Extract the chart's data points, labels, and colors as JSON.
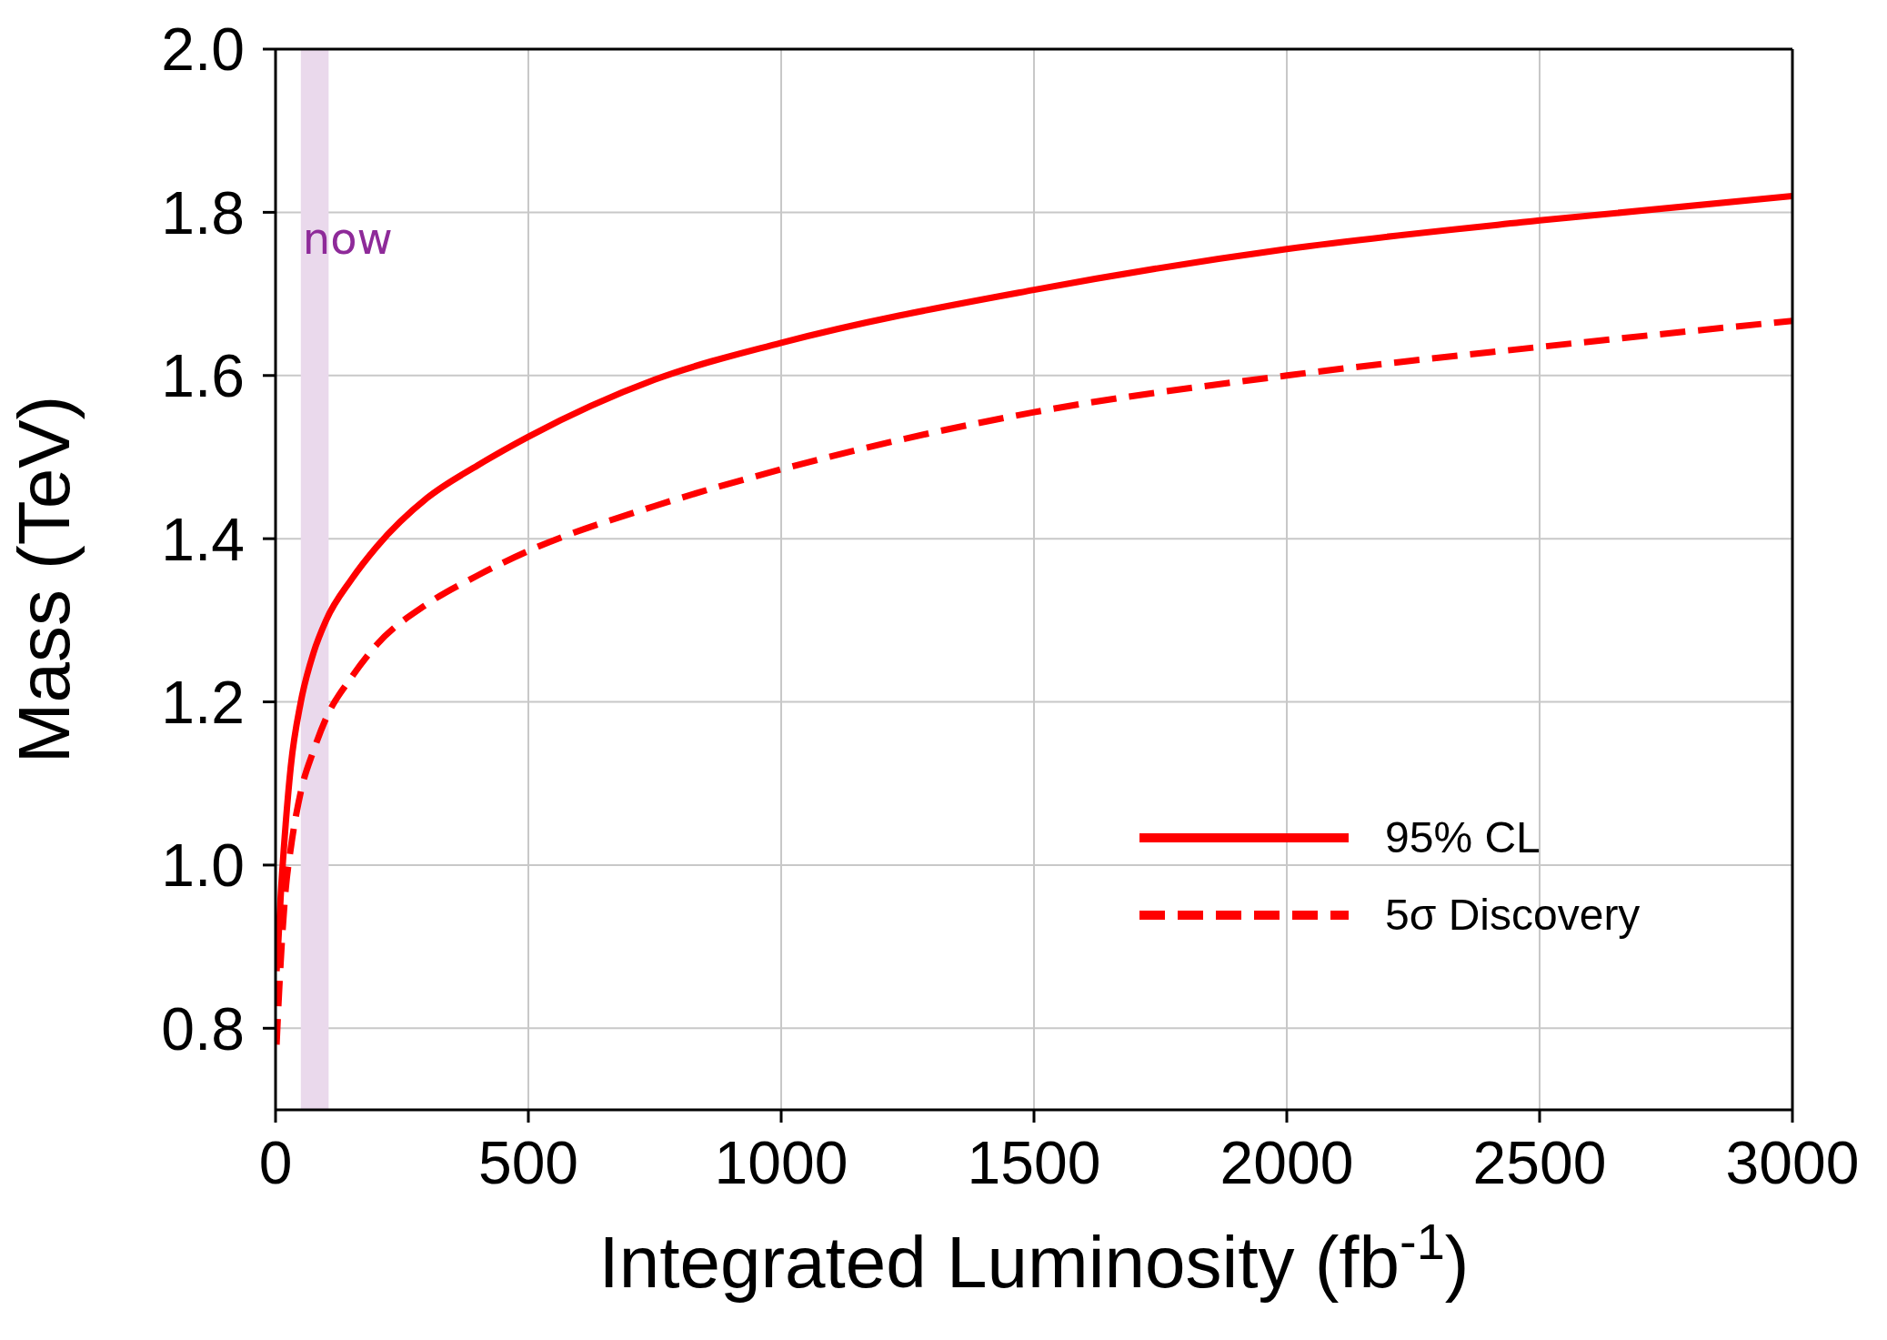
{
  "chart_data": {
    "type": "line",
    "xlabel": "Integrated Luminosity (fb$^{-1}$)",
    "ylabel": "Mass (TeV)",
    "series": [
      {
        "name": "95% CL",
        "color": "#ff0000",
        "line_style": "solid",
        "x": [
          2,
          5,
          10,
          20,
          30,
          50,
          75,
          100,
          150,
          200,
          300,
          400,
          500,
          750,
          1000,
          1500,
          2000,
          2500,
          3000
        ],
        "values": [
          0.87,
          0.9,
          0.96,
          1.05,
          1.12,
          1.2,
          1.26,
          1.3,
          1.35,
          1.39,
          1.45,
          1.49,
          1.525,
          1.595,
          1.64,
          1.705,
          1.755,
          1.79,
          1.82
        ]
      },
      {
        "name": "5σ Discovery",
        "color": "#ff0000",
        "line_style": "dashed",
        "x": [
          2,
          5,
          10,
          20,
          30,
          50,
          75,
          100,
          150,
          200,
          300,
          400,
          500,
          750,
          1000,
          1500,
          2000,
          2500,
          3000
        ],
        "values": [
          0.78,
          0.82,
          0.88,
          0.97,
          1.02,
          1.09,
          1.14,
          1.18,
          1.23,
          1.27,
          1.32,
          1.355,
          1.385,
          1.44,
          1.485,
          1.555,
          1.6,
          1.635,
          1.667
        ]
      }
    ],
    "xlim": [
      0,
      3000
    ],
    "xticks": [
      0,
      500,
      1000,
      1500,
      2000,
      2500,
      3000
    ],
    "ylim": [
      0.7,
      2.0
    ],
    "yticks": [
      {
        "value": 0.8,
        "label": "0.8"
      },
      {
        "value": 1,
        "label": "1.0"
      },
      {
        "value": 1.2,
        "label": "1.2"
      },
      {
        "value": 1.4,
        "label": "1.4"
      },
      {
        "value": 1.6,
        "label": "1.6"
      },
      {
        "value": 1.8,
        "label": "1.8"
      },
      {
        "value": 2,
        "label": "2.0"
      }
    ],
    "bands": [
      {
        "axis": "x",
        "from": 50,
        "to": 105,
        "label": "now",
        "color": "#ead9ec"
      }
    ],
    "grid": true,
    "legend": "bottom right",
    "marker": "none"
  }
}
